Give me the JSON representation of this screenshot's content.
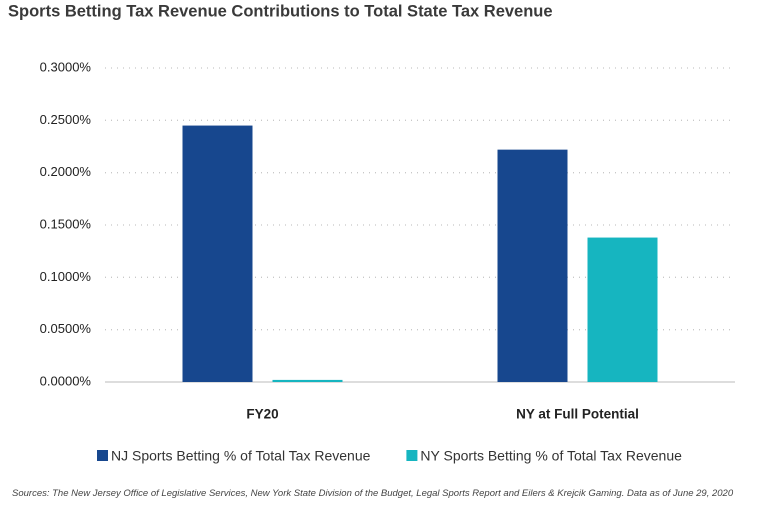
{
  "chart_data": {
    "type": "bar",
    "title": "Sports Betting Tax Revenue Contributions to Total State Tax Revenue",
    "categories": [
      "FY20",
      "NY at Full Potential"
    ],
    "series": [
      {
        "name": "NJ Sports Betting % of Total Tax Revenue",
        "color": "#17478e",
        "values": [
          0.245,
          0.222
        ]
      },
      {
        "name": "NY Sports Betting % of Total Tax Revenue",
        "color": "#16b5c0",
        "values": [
          0.002,
          0.138
        ]
      }
    ],
    "ylim": [
      0,
      0.3
    ],
    "yticks": [
      {
        "value": 0,
        "label": "0.0000%"
      },
      {
        "value": 0.05,
        "label": "0.0500%"
      },
      {
        "value": 0.1,
        "label": "0.1000%"
      },
      {
        "value": 0.15,
        "label": "0.1500%"
      },
      {
        "value": 0.2,
        "label": "0.2000%"
      },
      {
        "value": 0.25,
        "label": "0.2500%"
      },
      {
        "value": 0.3,
        "label": "0.3000%"
      }
    ],
    "grid": true,
    "legend": "bottom",
    "source": "Sources: The New Jersey Office of Legislative Services, New York State Division of the Budget, Legal Sports Report and Eilers & Krejcik Gaming. Data as of June 29, 2020"
  }
}
